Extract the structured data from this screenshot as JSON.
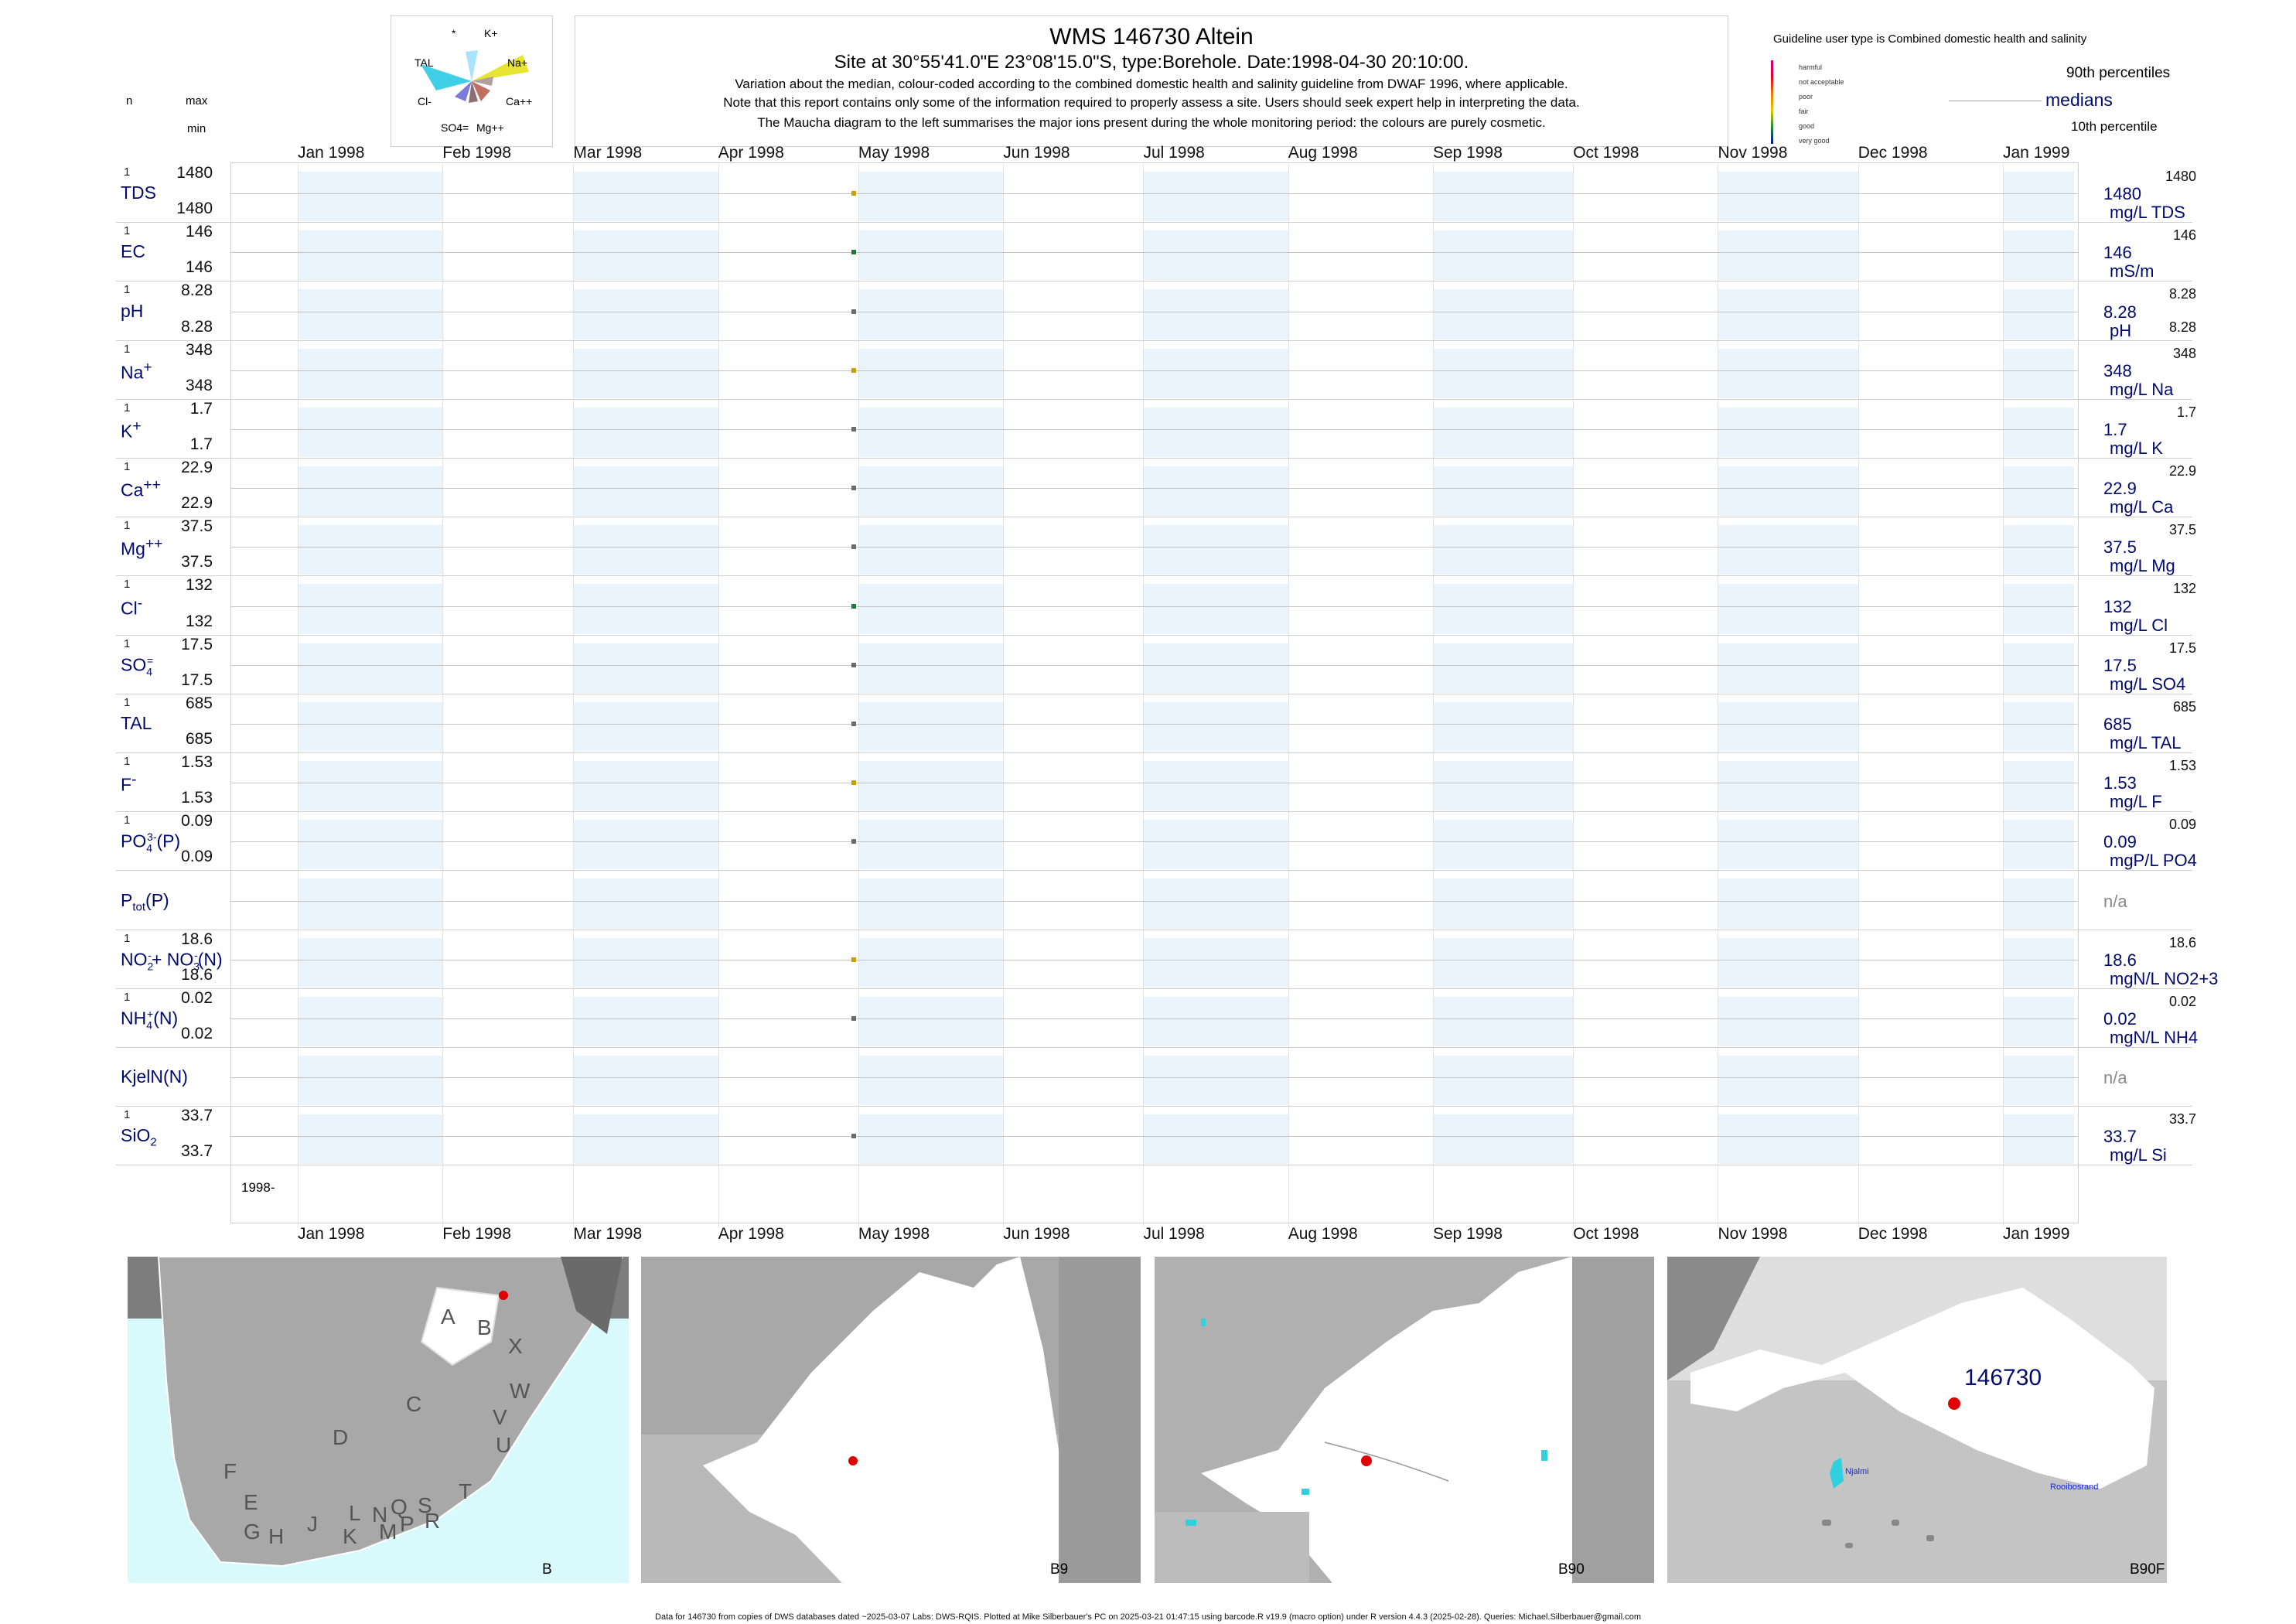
{
  "header": {
    "title": "WMS 146730  Altein",
    "subtitle": "Site at 30°55'41.0\"E 23°08'15.0\"S, type:Borehole. Date:1998-04-30 20:10:00.",
    "lines": [
      "Variation about the median,  colour-coded according to the combined domestic health and salinity guideline from DWAF 1996, where applicable.",
      "Note that this report contains only some of the information required to properly assess a site. Users should seek expert help in interpreting the data.",
      "The Maucha diagram to the left summarises the major ions present during the whole monitoring period: the colours are purely cosmetic."
    ]
  },
  "left_header": {
    "n": "n",
    "max": "max",
    "min": "min"
  },
  "maucha": {
    "labels": [
      "*",
      "K+",
      "TAL",
      "Na+",
      "Cl-",
      "Ca++",
      "SO4=",
      "Mg++"
    ]
  },
  "guideline": {
    "title": "Guideline user type is Combined domestic health and salinity",
    "legend": [
      {
        "label": "harmful",
        "color": "#c8008c"
      },
      {
        "label": "not acceptable",
        "color": "#e8001c"
      },
      {
        "label": "poor",
        "color": "#f07800"
      },
      {
        "label": "fair",
        "color": "#e6c800"
      },
      {
        "label": "good",
        "color": "#1e8c32"
      },
      {
        "label": "very good",
        "color": "#0014a0"
      }
    ],
    "p90": "90th percentiles",
    "medians": "medians",
    "p10": "10th percentile"
  },
  "axis": {
    "months_top": [
      "Jan 1998",
      "Feb 1998",
      "Mar 1998",
      "Apr 1998",
      "May 1998",
      "Jun 1998",
      "Jul 1998",
      "Aug 1998",
      "Sep 1998",
      "Oct 1998",
      "Nov 1998",
      "Dec 1998",
      "Jan 1999"
    ],
    "months_bottom": [
      "Jan 1998",
      "Feb 1998",
      "Mar 1998",
      "Apr 1998",
      "May 1998",
      "Jun 1998",
      "Jul 1998",
      "Aug 1998",
      "Sep 1998",
      "Oct 1998",
      "Nov 1998",
      "Dec 1998",
      "Jan 1999"
    ],
    "year_label": "1998-"
  },
  "chart_data": {
    "type": "scatter",
    "x_range": [
      "1998-01-01",
      "1999-01-15"
    ],
    "sample_date": "1998-04-30",
    "rows": [
      {
        "label": "TDS",
        "n": "1",
        "max": "1480",
        "min": "1480",
        "value": "1480",
        "unit": "mg/L TDS",
        "p90": "1480",
        "p10": "",
        "color": "#c8a000"
      },
      {
        "label": "EC",
        "n": "1",
        "max": "146",
        "min": "146",
        "value": "146",
        "unit": "mS/m",
        "p90": "146",
        "p10": "",
        "color": "#1e7a3a"
      },
      {
        "label": "pH",
        "n": "1",
        "max": "8.28",
        "min": "8.28",
        "value": "8.28",
        "unit": "pH",
        "p90": "8.28",
        "p10": "8.28",
        "color": "#6b6b6b"
      },
      {
        "label": "Na+",
        "n": "1",
        "max": "348",
        "min": "348",
        "value": "348",
        "unit": "mg/L Na",
        "p90": "348",
        "p10": "",
        "color": "#c8a000"
      },
      {
        "label": "K+",
        "n": "1",
        "max": "1.7",
        "min": "1.7",
        "value": "1.7",
        "unit": "mg/L K",
        "p90": "1.7",
        "p10": "",
        "color": "#6b6b6b"
      },
      {
        "label": "Ca++",
        "n": "1",
        "max": "22.9",
        "min": "22.9",
        "value": "22.9",
        "unit": "mg/L Ca",
        "p90": "22.9",
        "p10": "",
        "color": "#6b6b6b"
      },
      {
        "label": "Mg++",
        "n": "1",
        "max": "37.5",
        "min": "37.5",
        "value": "37.5",
        "unit": "mg/L Mg",
        "p90": "37.5",
        "p10": "",
        "color": "#6b6b6b"
      },
      {
        "label": "Cl-",
        "n": "1",
        "max": "132",
        "min": "132",
        "value": "132",
        "unit": "mg/L Cl",
        "p90": "132",
        "p10": "",
        "color": "#1e7a3a"
      },
      {
        "label": "SO4=",
        "n": "1",
        "max": "17.5",
        "min": "17.5",
        "value": "17.5",
        "unit": "mg/L SO4",
        "p90": "17.5",
        "p10": "",
        "color": "#6b6b6b"
      },
      {
        "label": "TAL",
        "n": "1",
        "max": "685",
        "min": "685",
        "value": "685",
        "unit": "mg/L TAL",
        "p90": "685",
        "p10": "",
        "color": "#6b6b6b"
      },
      {
        "label": "F-",
        "n": "1",
        "max": "1.53",
        "min": "1.53",
        "value": "1.53",
        "unit": "mg/L F",
        "p90": "1.53",
        "p10": "",
        "color": "#c8a000"
      },
      {
        "label": "PO43-(P)",
        "n": "1",
        "max": "0.09",
        "min": "0.09",
        "value": "0.09",
        "unit": "mgP/L PO4",
        "p90": "0.09",
        "p10": "",
        "color": "#6b6b6b"
      },
      {
        "label": "Ptot(P)",
        "n": "",
        "max": "",
        "min": "",
        "value": "n/a",
        "unit": "",
        "p90": "",
        "p10": "",
        "color": ""
      },
      {
        "label": "NO2-+NO3-(N)",
        "n": "1",
        "max": "18.6",
        "min": "18.6",
        "value": "18.6",
        "unit": "mgN/L NO2+3",
        "p90": "18.6",
        "p10": "",
        "color": "#c8a000"
      },
      {
        "label": "NH4+(N)",
        "n": "1",
        "max": "0.02",
        "min": "0.02",
        "value": "0.02",
        "unit": "mgN/L NH4",
        "p90": "0.02",
        "p10": "",
        "color": "#6b6b6b"
      },
      {
        "label": "KjelN(N)",
        "n": "",
        "max": "",
        "min": "",
        "value": "n/a",
        "unit": "",
        "p90": "",
        "p10": "",
        "color": ""
      },
      {
        "label": "SiO2",
        "n": "1",
        "max": "33.7",
        "min": "33.7",
        "value": "33.7",
        "unit": "mg/L Si",
        "p90": "33.7",
        "p10": "",
        "color": "#6b6b6b"
      }
    ]
  },
  "maps": [
    {
      "caption": "B",
      "letters": [
        "A",
        "B",
        "X",
        "W",
        "C",
        "V",
        "U",
        "D",
        "T",
        "F",
        "E",
        "L",
        "N",
        "Q",
        "S",
        "G",
        "H",
        "J",
        "K",
        "M",
        "P",
        "R"
      ]
    },
    {
      "caption": "B9"
    },
    {
      "caption": "B90"
    },
    {
      "caption": "B90F",
      "site_label": "146730",
      "places": [
        "Njalmi",
        "Rooibosrand"
      ]
    }
  ],
  "footer": "Data for 146730 from copies of DWS databases dated ~2025-03-07 Labs: DWS-RQIS. Plotted at Mike Silberbauer's PC on 2025-03-21 01:47:15 using barcode.R v19.9 (macro option) under R version 4.4.3 (2025-02-28). Queries: Michael.Silberbauer@gmail.com"
}
